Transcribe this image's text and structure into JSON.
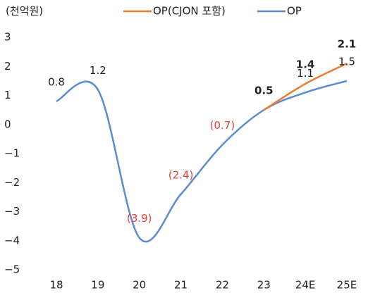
{
  "chart_data": {
    "type": "line",
    "unit": "(천억원)",
    "categories": [
      "18",
      "19",
      "20",
      "21",
      "22",
      "23",
      "24E",
      "25E"
    ],
    "series": [
      {
        "name": "OP(CJON 포함)",
        "color": "#ed7d31",
        "values": [
          null,
          null,
          null,
          null,
          null,
          0.5,
          1.4,
          2.1
        ]
      },
      {
        "name": "OP",
        "color": "#5b8bd0",
        "values": [
          0.8,
          1.2,
          -3.9,
          -2.4,
          -0.7,
          0.5,
          1.1,
          1.5
        ],
        "value_labels": [
          "0.8",
          "1.2",
          "(3.9)",
          "(2.4)",
          "(0.7)",
          null,
          "1.1",
          "1.5"
        ]
      }
    ],
    "ylim": [
      -5,
      3
    ],
    "yticks": [
      {
        "value": -5,
        "label": "−5"
      },
      {
        "value": -4,
        "label": "−4"
      },
      {
        "value": -3,
        "label": "−3"
      },
      {
        "value": -2,
        "label": "−2"
      },
      {
        "value": -1,
        "label": "−1"
      },
      0,
      1,
      2,
      3
    ],
    "legend": "top",
    "smooth": true
  }
}
